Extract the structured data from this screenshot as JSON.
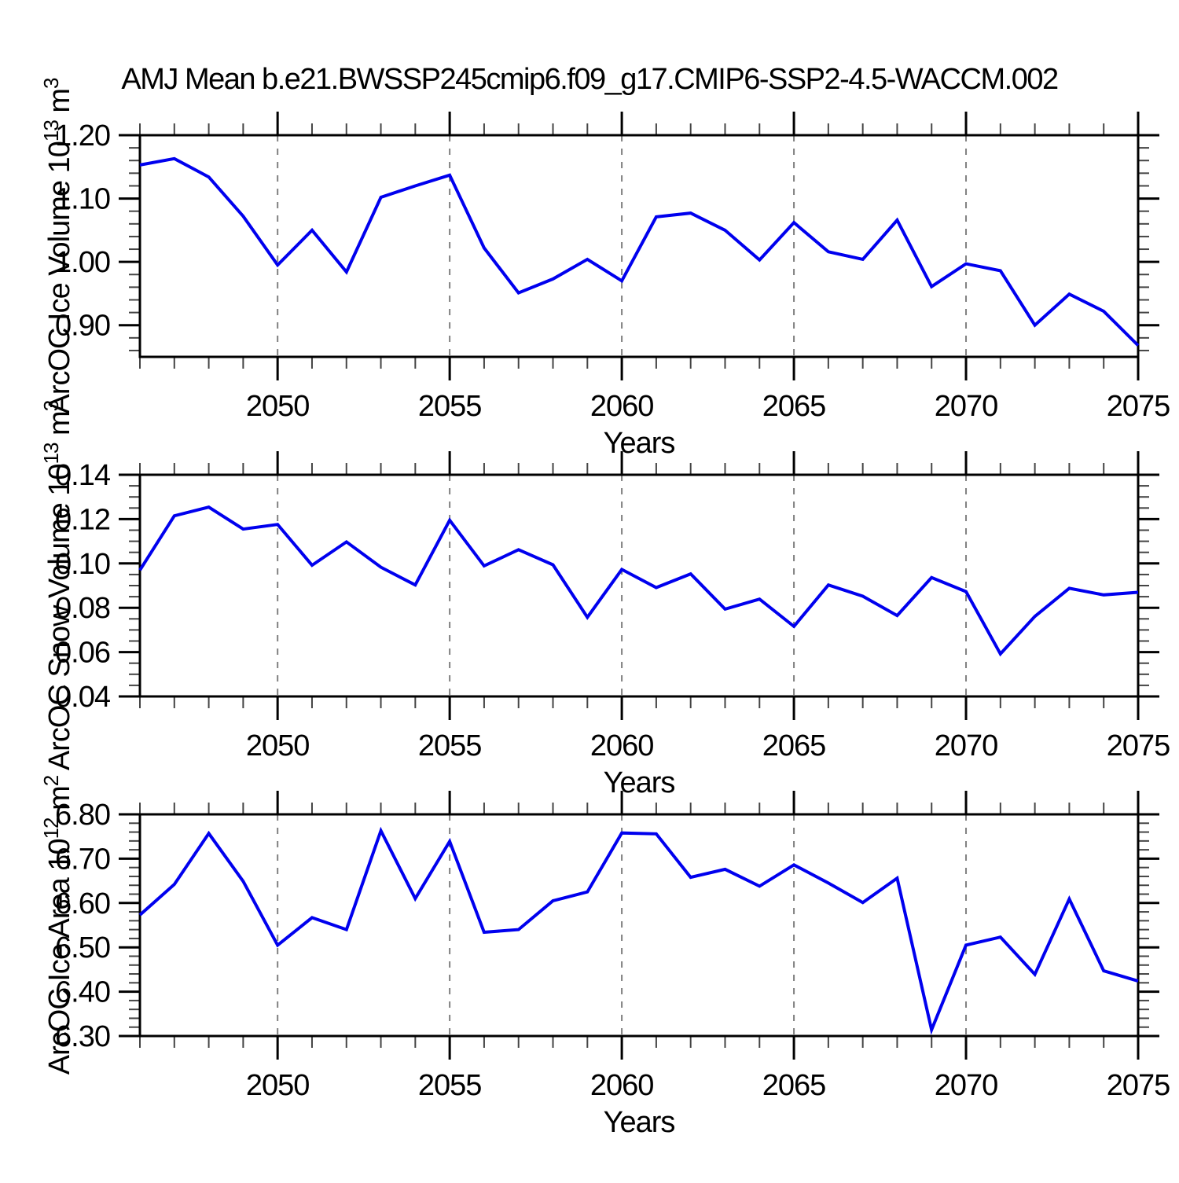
{
  "title": "AMJ Mean b.e21.BWSSP245cmip6.f09_g17.CMIP6-SSP2-4.5-WACCM.002",
  "colors": {
    "line": "#0000ee",
    "grid": "#808080",
    "axis": "#000000",
    "minor_tick": "#444444",
    "text": "#000000"
  },
  "x_axis": {
    "label": "Years",
    "years": [
      2046,
      2047,
      2048,
      2049,
      2050,
      2051,
      2052,
      2053,
      2054,
      2055,
      2056,
      2057,
      2058,
      2059,
      2060,
      2061,
      2062,
      2063,
      2064,
      2065,
      2066,
      2067,
      2068,
      2069,
      2070,
      2071,
      2072,
      2073,
      2074,
      2075
    ],
    "xlim": [
      2046,
      2075
    ],
    "tick_label_years": [
      2050,
      2055,
      2060,
      2065,
      2070,
      2075
    ],
    "grid_years": [
      2050,
      2055,
      2060,
      2065,
      2070
    ],
    "minor_step": 1
  },
  "chart_data": [
    {
      "type": "line",
      "id": "ice-volume",
      "ylabel": "ArcOC Ice Volume 10^{13} m^{3}",
      "ylim": [
        0.85,
        1.2
      ],
      "yticks": [
        0.9,
        1.0,
        1.1,
        1.2
      ],
      "ytick_labels": [
        "0.90",
        "1.00",
        "1.10",
        "1.20"
      ],
      "ytick_minor_step": 0.02,
      "grid": "vertical-dashed",
      "values": [
        1.153,
        1.163,
        1.134,
        1.072,
        0.995,
        1.05,
        0.984,
        1.102,
        1.12,
        1.137,
        1.022,
        0.951,
        0.973,
        1.004,
        0.97,
        1.071,
        1.077,
        1.05,
        1.003,
        1.062,
        1.016,
        1.004,
        1.066,
        0.961,
        0.997,
        0.986,
        0.9,
        0.949,
        0.922,
        0.868
      ]
    },
    {
      "type": "line",
      "id": "snow-volume",
      "ylabel": "ArcOC Snow Volume 10^{13} m^{3}",
      "ylim": [
        0.04,
        0.14
      ],
      "yticks": [
        0.04,
        0.06,
        0.08,
        0.1,
        0.12,
        0.14
      ],
      "ytick_labels": [
        "0.04",
        "0.06",
        "0.08",
        "0.10",
        "0.12",
        "0.14"
      ],
      "ytick_minor_step": 0.005,
      "grid": "vertical-dashed",
      "values": [
        0.097,
        0.1215,
        0.1254,
        0.1155,
        0.1176,
        0.0992,
        0.1097,
        0.0983,
        0.0903,
        0.1195,
        0.0989,
        0.1062,
        0.0994,
        0.0757,
        0.0973,
        0.0891,
        0.0953,
        0.0794,
        0.0839,
        0.0716,
        0.0903,
        0.0852,
        0.0765,
        0.0936,
        0.0873,
        0.0592,
        0.0761,
        0.0888,
        0.0858,
        0.087
      ]
    },
    {
      "type": "line",
      "id": "ice-area",
      "ylabel": "ArcOC Ice Area 10^{12} m^{2}",
      "ylim": [
        6.3,
        6.8
      ],
      "yticks": [
        6.3,
        6.4,
        6.5,
        6.6,
        6.7,
        6.8
      ],
      "ytick_labels": [
        "6.30",
        "6.40",
        "6.50",
        "6.60",
        "6.70",
        "6.80"
      ],
      "ytick_minor_step": 0.02,
      "grid": "vertical-dashed",
      "values": [
        6.573,
        6.642,
        6.757,
        6.649,
        6.505,
        6.567,
        6.54,
        6.763,
        6.61,
        6.739,
        6.534,
        6.54,
        6.605,
        6.625,
        6.758,
        6.756,
        6.658,
        6.676,
        6.638,
        6.686,
        6.645,
        6.601,
        6.656,
        6.314,
        6.505,
        6.523,
        6.439,
        6.609,
        6.447,
        6.424
      ]
    }
  ]
}
